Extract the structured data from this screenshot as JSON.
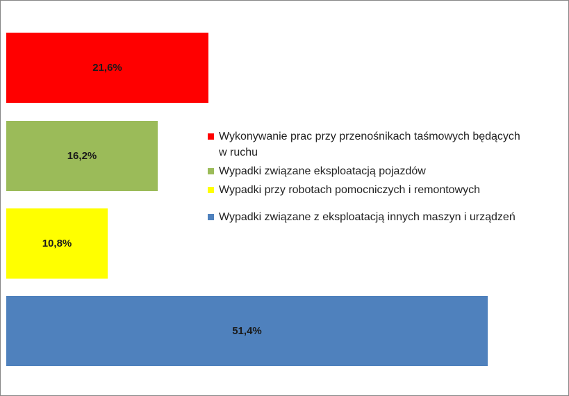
{
  "chart_data": {
    "type": "bar",
    "orientation": "horizontal",
    "title": "",
    "xlabel": "",
    "ylabel": "",
    "xlim": [
      0,
      52
    ],
    "grid": false,
    "legend_placement": "center-right",
    "unit": "%",
    "bars": [
      {
        "label": "21,6%",
        "value": 21.6,
        "color": "#ff0000"
      },
      {
        "label": "16,2%",
        "value": 16.2,
        "color": "#9bbb59"
      },
      {
        "label": "10,8%",
        "value": 10.8,
        "color": "#ffff00"
      },
      {
        "label": "51,4%",
        "value": 51.4,
        "color": "#4f81bd"
      }
    ],
    "legend": [
      {
        "text": "Wykonywanie prac przy przenośnikach taśmowych będących w ruchu",
        "color": "#ff0000"
      },
      {
        "text": "Wypadki związane eksploatacją pojazdów",
        "color": "#9bbb59"
      },
      {
        "text": "Wypadki przy robotach pomocniczych i remontowych",
        "color": "#ffff00"
      },
      {
        "text": "Wypadki związane z eksploatacją innych maszyn i urządzeń",
        "color": "#4f81bd"
      }
    ]
  }
}
